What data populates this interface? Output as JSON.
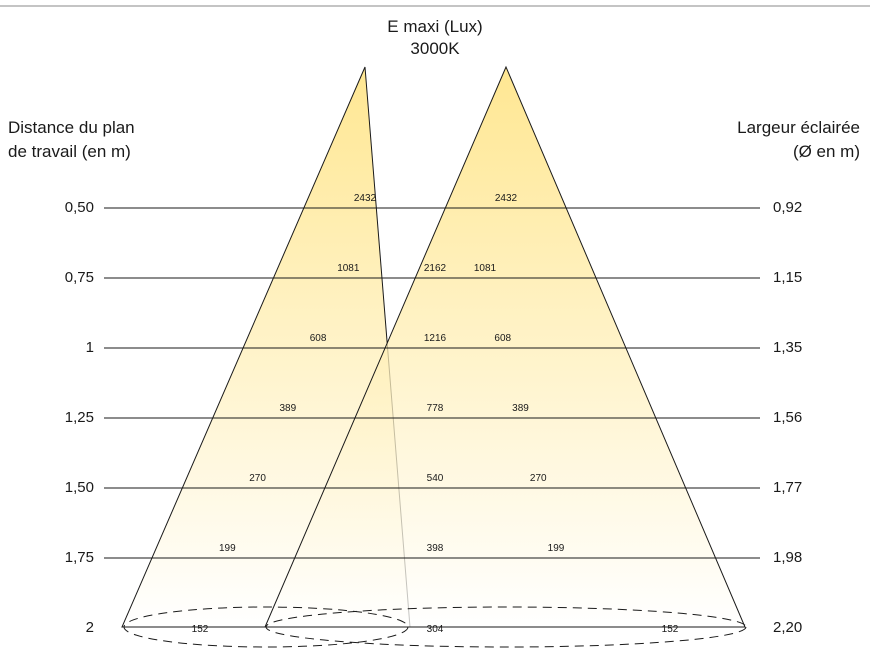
{
  "title": "E maxi (Lux)",
  "subtitle": "3000K",
  "left_label_line1": "Distance du plan",
  "left_label_line2": "de travail (en m)",
  "right_label_line1": "Largeur éclairée",
  "right_label_line2": "(Ø en m)",
  "colors": {
    "beam_top": "#ffdf6e",
    "beam_bottom": "#ffffff",
    "line": "#1a1a1a"
  },
  "rows": [
    {
      "distance": "0,50",
      "width": "0,92",
      "left": "2432",
      "center": "",
      "right": "2432"
    },
    {
      "distance": "0,75",
      "width": "1,15",
      "left": "1081",
      "center": "2162",
      "right": "1081"
    },
    {
      "distance": "1",
      "width": "1,35",
      "left": "608",
      "center": "1216",
      "right": "608"
    },
    {
      "distance": "1,25",
      "width": "1,56",
      "left": "389",
      "center": "778",
      "right": "389"
    },
    {
      "distance": "1,50",
      "width": "1,77",
      "left": "270",
      "center": "540",
      "right": "270"
    },
    {
      "distance": "1,75",
      "width": "1,98",
      "left": "199",
      "center": "398",
      "right": "199"
    },
    {
      "distance": "2",
      "width": "2,20",
      "left": "152",
      "center": "304",
      "right": "152"
    }
  ]
}
